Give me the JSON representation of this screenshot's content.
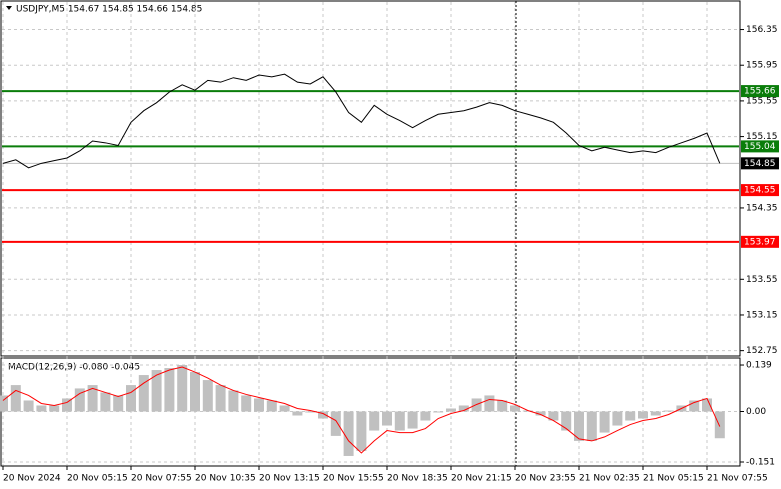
{
  "chart_data": [
    {
      "type": "line",
      "title": "USDJPY,M5  154.67 154.85 154.66 154.85",
      "categories": [
        "20 Nov 2024",
        null,
        null,
        null,
        null,
        "20 Nov 05:15",
        null,
        null,
        null,
        null,
        "20 Nov 07:55",
        null,
        null,
        null,
        null,
        "20 Nov 10:35",
        null,
        null,
        null,
        null,
        "20 Nov 13:15",
        null,
        null,
        null,
        null,
        "20 Nov 15:55",
        null,
        null,
        null,
        null,
        "20 Nov 18:35",
        null,
        null,
        null,
        null,
        "20 Nov 21:15",
        null,
        null,
        null,
        null,
        "20 Nov 23:55",
        null,
        null,
        null,
        null,
        "21 Nov 02:35",
        null,
        null,
        null,
        null,
        "21 Nov 05:15",
        null,
        null,
        null,
        null,
        "21 Nov 07:55",
        null
      ],
      "values": [
        154.85,
        154.89,
        154.8,
        154.85,
        154.88,
        154.91,
        154.99,
        155.1,
        155.08,
        155.05,
        155.31,
        155.44,
        155.53,
        155.65,
        155.73,
        155.67,
        155.78,
        155.76,
        155.81,
        155.78,
        155.84,
        155.82,
        155.85,
        155.76,
        155.74,
        155.82,
        155.65,
        155.42,
        155.31,
        155.5,
        155.4,
        155.33,
        155.25,
        155.33,
        155.4,
        155.42,
        155.44,
        155.48,
        155.53,
        155.5,
        155.44,
        155.4,
        155.36,
        155.31,
        155.19,
        155.05,
        154.99,
        155.03,
        155.0,
        154.97,
        154.99,
        154.97,
        155.03,
        155.08,
        155.13,
        155.19,
        154.85
      ],
      "color": "#000000",
      "ylim": [
        152.69,
        156.67
      ],
      "yticks": [
        156.35,
        155.95,
        155.55,
        155.15,
        154.35,
        153.55,
        153.15,
        152.75
      ],
      "grid": true,
      "levels": [
        {
          "value": 155.66,
          "color": "#0a7d0a"
        },
        {
          "value": 155.04,
          "color": "#0a7d0a"
        },
        {
          "value": 154.55,
          "color": "#ff0000"
        },
        {
          "value": 153.97,
          "color": "#ff0000"
        }
      ],
      "last_price": 154.85
    },
    {
      "type": "macd",
      "title": "MACD(12,26,9) -0.080 -0.045",
      "histogram": {
        "color": "#c0c0c0",
        "values": [
          0.048,
          0.079,
          0.033,
          0.018,
          0.018,
          0.039,
          0.069,
          0.079,
          0.057,
          0.048,
          0.079,
          0.109,
          0.124,
          0.13,
          0.139,
          0.118,
          0.094,
          0.079,
          0.063,
          0.048,
          0.039,
          0.033,
          0.018,
          -0.012,
          -0.003,
          -0.021,
          -0.073,
          -0.133,
          -0.118,
          -0.057,
          -0.042,
          -0.057,
          -0.051,
          -0.027,
          -0.003,
          0.009,
          0.018,
          0.039,
          0.048,
          0.033,
          0.018,
          0.003,
          -0.012,
          -0.027,
          -0.057,
          -0.088,
          -0.088,
          -0.063,
          -0.042,
          -0.027,
          -0.021,
          -0.012,
          0.003,
          0.018,
          0.033,
          0.039,
          -0.08
        ]
      },
      "signal": {
        "color": "#ff0000",
        "values": [
          0.033,
          0.063,
          0.048,
          0.024,
          0.018,
          0.027,
          0.054,
          0.069,
          0.057,
          0.045,
          0.057,
          0.085,
          0.109,
          0.124,
          0.133,
          0.118,
          0.1,
          0.079,
          0.063,
          0.051,
          0.042,
          0.033,
          0.024,
          0.009,
          0.003,
          -0.006,
          -0.027,
          -0.088,
          -0.124,
          -0.088,
          -0.057,
          -0.063,
          -0.063,
          -0.051,
          -0.021,
          -0.006,
          0.003,
          0.021,
          0.036,
          0.033,
          0.021,
          0.003,
          -0.009,
          -0.027,
          -0.051,
          -0.082,
          -0.088,
          -0.076,
          -0.057,
          -0.039,
          -0.027,
          -0.021,
          -0.009,
          0.009,
          0.027,
          0.039,
          -0.045
        ]
      },
      "ylim": [
        -0.163,
        0.16
      ],
      "yticks": [
        0.139,
        {
          "value": 0,
          "label": "0.00"
        },
        -0.151
      ]
    }
  ]
}
